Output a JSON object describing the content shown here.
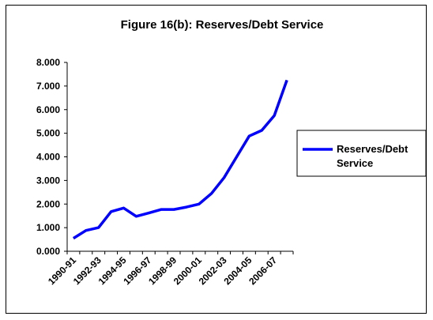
{
  "chart_data": {
    "type": "line",
    "title": "Figure 16(b): Reserves/Debt Service",
    "xlabel": "",
    "ylabel": "",
    "ylim": [
      0,
      8
    ],
    "y_ticks": [
      "0.000",
      "1.000",
      "2.000",
      "3.000",
      "4.000",
      "5.000",
      "6.000",
      "7.000",
      "8.000"
    ],
    "x": [
      "1990-91",
      "1991-92",
      "1992-93",
      "1993-94",
      "1994-95",
      "1995-96",
      "1996-97",
      "1997-98",
      "1998-99",
      "1999-00",
      "2000-01",
      "2001-02",
      "2002-03",
      "2003-04",
      "2004-05",
      "2005-06",
      "2006-07",
      "2007-08"
    ],
    "x_tick_labels": [
      "1990-91",
      "1992-93",
      "1994-95",
      "1996-97",
      "1998-99",
      "2000-01",
      "2002-03",
      "2004-05",
      "2006-07"
    ],
    "series": [
      {
        "name": "Reserves/Debt Service",
        "color": "#0000ff",
        "values": [
          0.55,
          0.88,
          1.0,
          1.68,
          1.83,
          1.48,
          1.62,
          1.77,
          1.77,
          1.87,
          2.0,
          2.45,
          3.12,
          4.0,
          4.88,
          5.12,
          5.75,
          7.25
        ]
      }
    ],
    "legend": {
      "position": "right",
      "label_lines": [
        "Reserves/Debt",
        "Service"
      ]
    },
    "grid": false
  }
}
